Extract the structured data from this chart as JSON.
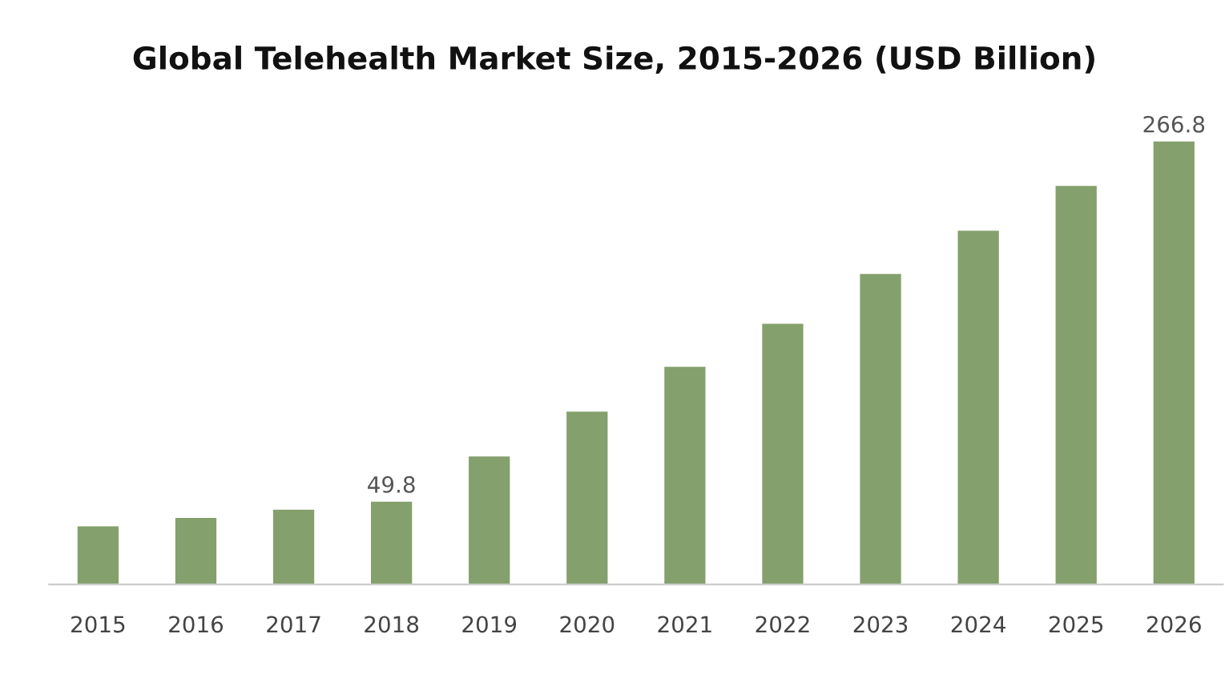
{
  "chart_data": {
    "type": "bar",
    "title": "Global Telehealth Market Size, 2015-2026 (USD Billion)",
    "categories": [
      "2015",
      "2016",
      "2017",
      "2018",
      "2019",
      "2020",
      "2021",
      "2022",
      "2023",
      "2024",
      "2025",
      "2026"
    ],
    "values": [
      35,
      40,
      45,
      49.8,
      77,
      104,
      131,
      157,
      187,
      213,
      240,
      266.8
    ],
    "value_labels": [
      null,
      null,
      null,
      "49.8",
      null,
      null,
      null,
      null,
      null,
      null,
      null,
      "266.8"
    ],
    "tick_labels": "x",
    "color": "#84a06c",
    "grid": false,
    "legend": false
  }
}
